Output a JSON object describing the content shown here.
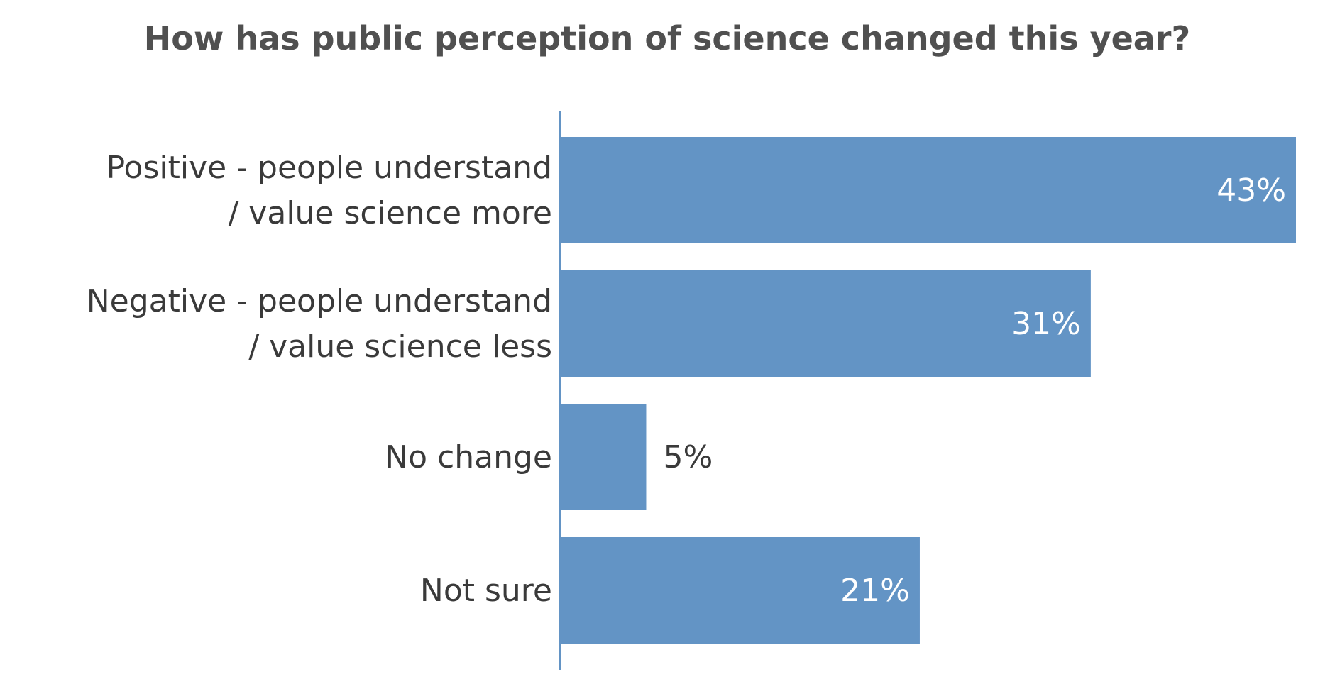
{
  "chart_data": {
    "type": "bar",
    "orientation": "horizontal",
    "title": "How has public perception of science changed this year?",
    "categories": [
      [
        "Positive - people understand",
        "/ value science more"
      ],
      [
        "Negative - people understand",
        "/ value science less"
      ],
      [
        "No change"
      ],
      [
        "Not sure"
      ]
    ],
    "values": [
      43,
      31,
      5,
      21
    ],
    "data_labels": [
      "43%",
      "31%",
      "5%",
      "21%"
    ],
    "xlim": [
      0,
      43
    ],
    "grid": false,
    "legend": "none",
    "colors": {
      "bar": "#6394c5",
      "axis": "#6394c5",
      "label_inside": "#ffffff",
      "label_outside": "#3a3a3a"
    }
  }
}
